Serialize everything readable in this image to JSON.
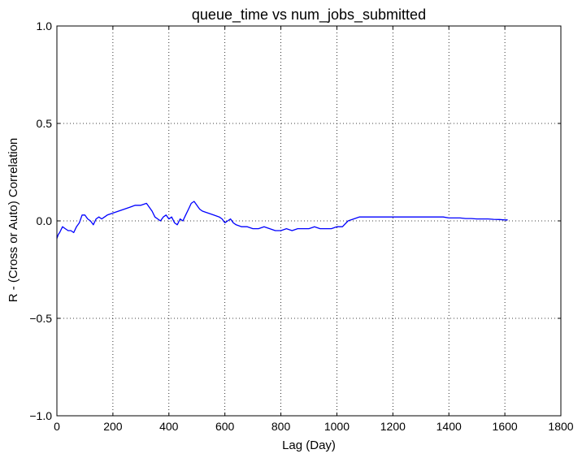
{
  "chart_data": {
    "type": "line",
    "title": "queue_time vs num_jobs_submitted",
    "xlabel": "Lag (Day)",
    "ylabel": "R - (Cross or Auto) Correlation",
    "xlim": [
      0,
      1800
    ],
    "ylim": [
      -1.0,
      1.0
    ],
    "xticks": [
      0,
      200,
      400,
      600,
      800,
      1000,
      1200,
      1400,
      1600,
      1800
    ],
    "xtick_labels": [
      "0",
      "200",
      "400",
      "600",
      "800",
      "1000",
      "1200",
      "1400",
      "1600",
      "1800"
    ],
    "yticks": [
      -1.0,
      -0.5,
      0.0,
      0.5,
      1.0
    ],
    "ytick_labels": [
      "−1.0",
      "−0.5",
      "0.0",
      "0.5",
      "1.0"
    ],
    "grid": true,
    "series": [
      {
        "color": "#0000ff",
        "x": [
          0,
          5,
          10,
          20,
          30,
          40,
          50,
          60,
          70,
          80,
          90,
          100,
          110,
          120,
          130,
          140,
          150,
          160,
          180,
          200,
          220,
          240,
          260,
          280,
          300,
          320,
          330,
          340,
          350,
          360,
          370,
          380,
          390,
          400,
          410,
          420,
          430,
          440,
          450,
          460,
          470,
          480,
          490,
          500,
          510,
          520,
          540,
          560,
          580,
          590,
          600,
          610,
          620,
          630,
          640,
          660,
          680,
          700,
          720,
          740,
          760,
          780,
          800,
          820,
          840,
          860,
          880,
          900,
          920,
          940,
          960,
          980,
          1000,
          1020,
          1040,
          1060,
          1080,
          1100,
          1120,
          1140,
          1160,
          1180,
          1200,
          1220,
          1240,
          1260,
          1280,
          1300,
          1320,
          1340,
          1360,
          1380,
          1400,
          1420,
          1440,
          1460,
          1480,
          1500,
          1520,
          1540,
          1560,
          1580,
          1600,
          1610
        ],
        "y": [
          -0.09,
          -0.07,
          -0.06,
          -0.03,
          -0.04,
          -0.05,
          -0.05,
          -0.06,
          -0.03,
          -0.01,
          0.03,
          0.03,
          0.01,
          0.0,
          -0.02,
          0.01,
          0.02,
          0.01,
          0.03,
          0.04,
          0.05,
          0.06,
          0.07,
          0.08,
          0.08,
          0.09,
          0.07,
          0.05,
          0.02,
          0.01,
          0.0,
          0.02,
          0.03,
          0.01,
          0.02,
          -0.01,
          -0.02,
          0.01,
          0.0,
          0.03,
          0.06,
          0.09,
          0.1,
          0.08,
          0.06,
          0.05,
          0.04,
          0.03,
          0.02,
          0.01,
          -0.01,
          0.0,
          0.01,
          -0.01,
          -0.02,
          -0.03,
          -0.03,
          -0.04,
          -0.04,
          -0.03,
          -0.04,
          -0.05,
          -0.05,
          -0.04,
          -0.05,
          -0.04,
          -0.04,
          -0.04,
          -0.03,
          -0.04,
          -0.04,
          -0.04,
          -0.03,
          -0.03,
          0.0,
          0.01,
          0.02,
          0.02,
          0.02,
          0.02,
          0.02,
          0.02,
          0.02,
          0.02,
          0.02,
          0.02,
          0.02,
          0.02,
          0.02,
          0.02,
          0.02,
          0.02,
          0.015,
          0.015,
          0.015,
          0.012,
          0.012,
          0.01,
          0.01,
          0.01,
          0.008,
          0.007,
          0.005,
          0.005
        ]
      }
    ]
  }
}
